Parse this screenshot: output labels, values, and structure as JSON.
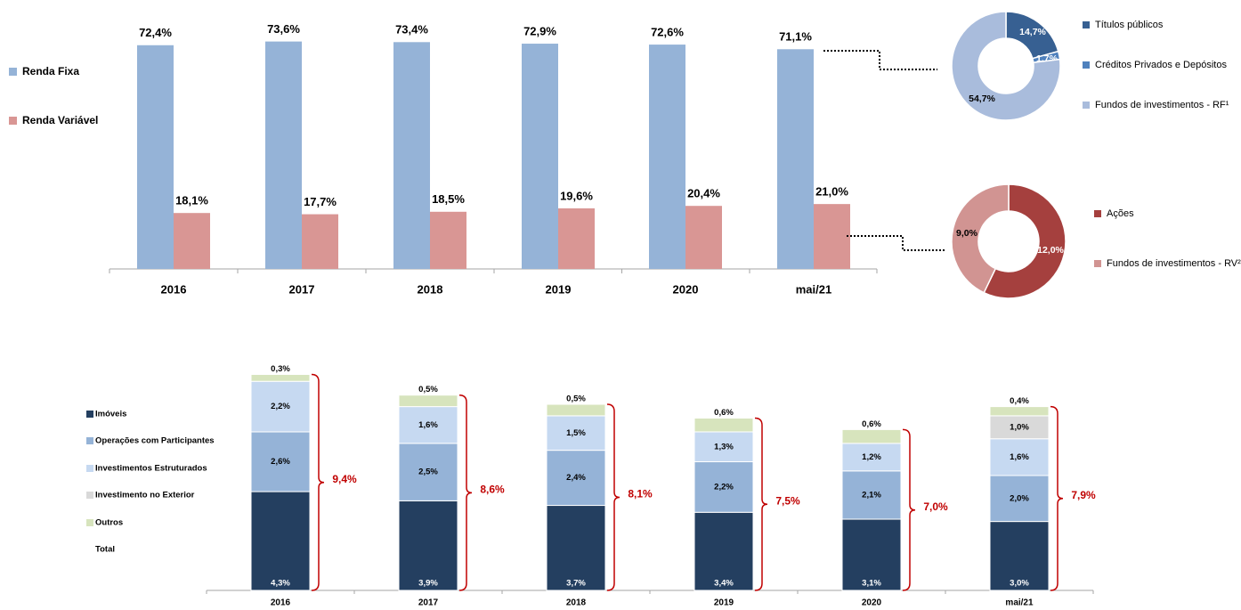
{
  "chart_data": [
    {
      "type": "bar",
      "categories": [
        "2016",
        "2017",
        "2018",
        "2019",
        "2020",
        "mai/21"
      ],
      "series": [
        {
          "name": "Renda Fixa",
          "values": [
            72.4,
            73.6,
            73.4,
            72.9,
            72.6,
            71.1
          ],
          "labels": [
            "72,4%",
            "73,6%",
            "73,4%",
            "72,9%",
            "72,6%",
            "71,1%"
          ],
          "color": "#95b3d7"
        },
        {
          "name": "Renda Variável",
          "values": [
            18.1,
            17.7,
            18.5,
            19.6,
            20.4,
            21.0
          ],
          "labels": [
            "18,1%",
            "17,7%",
            "18,5%",
            "19,6%",
            "20,4%",
            "21,0%"
          ],
          "color": "#d99694"
        }
      ],
      "legend": "left",
      "grid": false
    },
    {
      "type": "pie",
      "style": "donut",
      "slices": [
        {
          "name": "Títulos públicos",
          "value": 14.7,
          "label": "14,7%",
          "color": "#376092"
        },
        {
          "name": "Créditos Privados e Depósitos",
          "value": 1.7,
          "label": "1,7%",
          "color": "#4f81bd"
        },
        {
          "name": "Fundos de investimentos - RF¹",
          "value": 54.7,
          "label": "54,7%",
          "color": "#a9bcdc"
        }
      ],
      "legend": "right"
    },
    {
      "type": "pie",
      "style": "donut",
      "slices": [
        {
          "name": "Ações",
          "value": 12.0,
          "label": "12,0%",
          "color": "#a5403e"
        },
        {
          "name": "Fundos de investimentos - RV²",
          "value": 9.0,
          "label": "9,0%",
          "color": "#d19492"
        }
      ],
      "legend": "right"
    },
    {
      "type": "bar",
      "stacked": true,
      "categories": [
        "2016",
        "2017",
        "2018",
        "2019",
        "2020",
        "mai/21"
      ],
      "series": [
        {
          "name": "Imóveis",
          "values": [
            4.3,
            3.9,
            3.7,
            3.4,
            3.1,
            3.0
          ],
          "labels": [
            "4,3%",
            "3,9%",
            "3,7%",
            "3,4%",
            "3,1%",
            "3,0%"
          ],
          "color": "#243f60"
        },
        {
          "name": "Operações com Participantes",
          "values": [
            2.6,
            2.5,
            2.4,
            2.2,
            2.1,
            2.0
          ],
          "labels": [
            "2,6%",
            "2,5%",
            "2,4%",
            "2,2%",
            "2,1%",
            "2,0%"
          ],
          "color": "#95b3d7"
        },
        {
          "name": "Investimentos Estruturados",
          "values": [
            2.2,
            1.6,
            1.5,
            1.3,
            1.2,
            1.6
          ],
          "labels": [
            "2,2%",
            "1,6%",
            "1,5%",
            "1,3%",
            "1,2%",
            "1,6%"
          ],
          "color": "#c6d9f1"
        },
        {
          "name": "Investimento no Exterior",
          "values": [
            0,
            0,
            0,
            0,
            0,
            1.0
          ],
          "labels": [
            "",
            "",
            "",
            "",
            "",
            "1,0%"
          ],
          "color": "#d9d9d9"
        },
        {
          "name": "Outros",
          "values": [
            0.3,
            0.5,
            0.5,
            0.6,
            0.6,
            0.4
          ],
          "labels": [
            "0,3%",
            "0,5%",
            "0,5%",
            "0,6%",
            "0,6%",
            "0,4%"
          ],
          "color": "#d7e4bd"
        }
      ],
      "totals": {
        "name": "Total",
        "values": [
          9.4,
          8.6,
          8.1,
          7.5,
          7.0,
          7.9
        ],
        "labels": [
          "9,4%",
          "8,6%",
          "8,1%",
          "7,5%",
          "7,0%",
          "7,9%"
        ],
        "color": "#c00000"
      },
      "legend": "left",
      "grid": false
    }
  ],
  "colors": {
    "axis": "#a6a6a6",
    "text": "#000000",
    "connector": "#000000",
    "total_text": "#c00000",
    "brace": "#c00000"
  }
}
